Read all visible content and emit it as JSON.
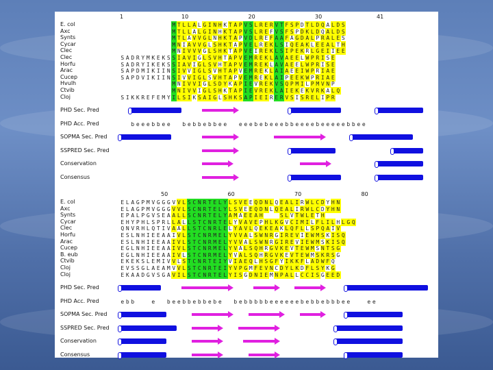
{
  "colors": {
    "yellow": "#ffff00",
    "green": "#22dd22",
    "helix": "#1010e0",
    "strand": "#e020e0"
  },
  "block1": {
    "positions": [
      {
        "col": 0,
        "label": "1"
      },
      {
        "col": 12,
        "label": "10"
      },
      {
        "col": 25,
        "label": "20"
      },
      {
        "col": 38,
        "label": "30"
      },
      {
        "col": 50,
        "label": "41"
      }
    ],
    "sequences": [
      {
        "name": "E. col",
        "seq": "          MTLLALGINHKTAPVSLRERVTFSPDTLDQALDS"
      },
      {
        "name": "Axc",
        "seq": "          MTLLALGINHKTAPVSLREFVSFSPDKLDQALDS"
      },
      {
        "name": "Synts",
        "seq": "          MTLAVVGLNHKTAPVDLREFAAFAGDALPRALES"
      },
      {
        "name": "Cycar",
        "seq": "          MNIAVVGLSHKTAPVELREKLSIQEAKLEEALTH"
      },
      {
        "name": "Clec",
        "seq": "          MNIVVVGLSHKTAPVEIREKLSIPEKRLGEIIEE"
      },
      {
        "name": "Clec",
        "seq": "SADRYMKEKSSIAVIGLSVHTAPVEMREKLAVAEELWPRISE"
      },
      {
        "name": "Horfu",
        "seq": "SADRYIKEKSSIAVIGLSVHTAPVEMREKLAVAEELWPRISE"
      },
      {
        "name": "Arac",
        "seq": "SAPDMIKIINSIVVIGLSVHTAPVEMREKLAIAEEIWPRIAE"
      },
      {
        "name": "Cucep",
        "seq": "SAPDVIKIINSIVVIGLSVHTAPVEMREKLAIPEEKWPRIAE"
      },
      {
        "name": "Hvulh",
        "seq": "          MNIVVIGLSDYKAPIEVREKVSQPMILPMVNP"
      },
      {
        "name": "Ctvib",
        "seq": "          MNIVVIGLSHKTAPIEVREKLAIEKEKVRKALQ"
      },
      {
        "name": "Cloj",
        "seq": "SIKKREFEMYILSIKSAIGLSHKSAPIEIRERVSISRELIPR"
      }
    ],
    "rows": [
      {
        "label": "PHD Sec. Pred",
        "helices": [
          [
            2,
            12
          ],
          [
            33,
            43
          ],
          [
            50,
            59
          ]
        ],
        "strands": [
          [
            16,
            23
          ]
        ]
      },
      {
        "label": "PHD Acc. Pred",
        "text": "  beeebbee  bebbebbee  eeebebeeebbeeeebeeeeebbee"
      },
      {
        "label": "SOPMA Sec. Pred",
        "helices": [
          [
            0,
            10
          ],
          [
            45,
            57
          ]
        ],
        "strands": [
          [
            16,
            23
          ],
          [
            30,
            40
          ]
        ]
      },
      {
        "label": "SSPRED Sec. Pred",
        "helices": [
          [
            33,
            42
          ],
          [
            53,
            59
          ]
        ],
        "strands": [
          [
            16,
            23
          ]
        ]
      },
      {
        "label": "Conservation",
        "helices": [
          [
            50,
            59
          ]
        ],
        "strands": [
          [
            16,
            22
          ],
          [
            35,
            41
          ]
        ]
      },
      {
        "label": "Consensus",
        "helices": [
          [
            33,
            43
          ],
          [
            50,
            59
          ]
        ],
        "strands": [
          [
            16,
            23
          ]
        ]
      }
    ]
  },
  "block2": {
    "positions": [
      {
        "col": 8,
        "label": "50"
      },
      {
        "col": 21,
        "label": "60"
      },
      {
        "col": 34,
        "label": "70"
      },
      {
        "col": 47,
        "label": "80"
      }
    ],
    "sequences": [
      {
        "name": "E. col",
        "seq": "ELAGPMVGGGVVLSCNRTELYLSVEEQDNLQEALIRWLCDYHN"
      },
      {
        "name": "Axc",
        "seq": "ELAGPMVGGGVVLSCNRTELYLSVEEQDNLQEALIRWLCDYHN"
      },
      {
        "name": "Synts",
        "seq": "EPALPGVSEAALLSCNRTELYAMAEEAH   SLVTWLETH"
      },
      {
        "name": "Cycar",
        "seq": "EHYPHLSPRLLALLSTCNRTELYVAVEPHLKGVCIMILFLILHLGQ"
      },
      {
        "name": "Clec",
        "seq": "QNVRHLQTIVAALLSTCNRLELYAVLQEKEAKLQFLLSPQAIV"
      },
      {
        "name": "Horfu",
        "seq": "ESLNHIEEAAIVLSTCNRMELYVVALSWNRGIREVIEWMSKISQ"
      },
      {
        "name": "Arac",
        "seq": "ESLNHIEEAAIVLSTCNRMELYVVALSWNRGIREVIEWMSKISQ"
      },
      {
        "name": "Cucep",
        "seq": "EGLNHIEEAAIVLSTCNRMELYVALSQHRGVKEVTEWMSNTSG"
      },
      {
        "name": "B. eub",
        "seq": "EGLNHIEEAAIVLSTCNRMELYVALSQHRGVKEVTEWMSKRSG"
      },
      {
        "name": "Ctvib",
        "seq": "EKEKSLEMIVVLSTCNRTEIYVIAEQLHSGFYIKKFLADWFQ"
      },
      {
        "name": "Cloj",
        "seq": "EVSSGLAEAMVVLSTCNRTEIYVPGMFEVNCDYLKDFLSYKG"
      },
      {
        "name": "Cloj",
        "seq": "EKAADGVSGAVILSTCNRTELYISGDNIEMNPALLCCISGEED"
      }
    ],
    "rows": [
      {
        "label": "PHD Sec. Pred",
        "helices": [
          [
            0,
            8
          ],
          [
            44,
            60
          ]
        ],
        "strands": [
          [
            12,
            22
          ],
          [
            26,
            31
          ],
          [
            34,
            40
          ]
        ]
      },
      {
        "label": "PHD Acc. Pred",
        "text": "ebb   e  beebbebbebe  bebbbbbeeeeeebebbebbbee   ee"
      },
      {
        "label": "SOPMA Sec. Pred",
        "helices": [
          [
            0,
            9
          ],
          [
            44,
            55
          ]
        ],
        "strands": [
          [
            14,
            22
          ],
          [
            25,
            32
          ],
          [
            35,
            40
          ]
        ]
      },
      {
        "label": "SSPRED Sec. Pred",
        "helices": [
          [
            0,
            11
          ],
          [
            42,
            55
          ]
        ],
        "strands": [
          [
            14,
            20
          ],
          [
            23,
            31
          ]
        ]
      },
      {
        "label": "Conservation",
        "helices": [
          [
            0,
            9
          ],
          [
            42,
            55
          ]
        ],
        "strands": [
          [
            14,
            20
          ],
          [
            24,
            31
          ]
        ]
      },
      {
        "label": "Consensus",
        "helices": [
          [
            0,
            9
          ],
          [
            44,
            55
          ]
        ],
        "strands": [
          [
            14,
            20
          ],
          [
            25,
            31
          ]
        ]
      }
    ]
  }
}
